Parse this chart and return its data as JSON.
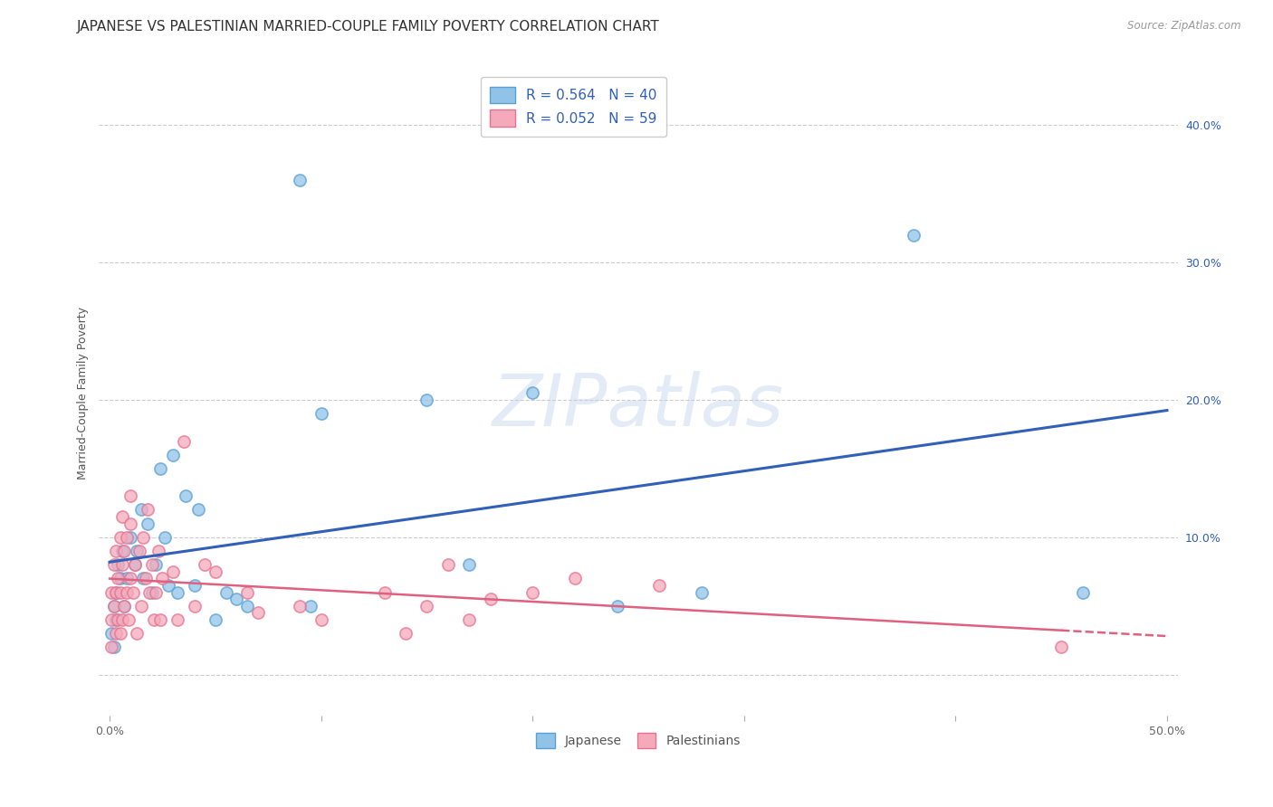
{
  "title": "JAPANESE VS PALESTINIAN MARRIED-COUPLE FAMILY POVERTY CORRELATION CHART",
  "source": "Source: ZipAtlas.com",
  "ylabel": "Married-Couple Family Poverty",
  "watermark": "ZIPatlas",
  "xlim": [
    0.0,
    0.5
  ],
  "ylim": [
    0.0,
    0.44
  ],
  "japanese_color": "#91C3E8",
  "japanese_edge_color": "#5A9FD4",
  "palestinian_color": "#F4AABB",
  "palestinian_edge_color": "#E87090",
  "japanese_line_color": "#3060B8",
  "palestinian_line_color": "#E06080",
  "japanese_R": 0.564,
  "japanese_N": 40,
  "palestinian_R": 0.052,
  "palestinian_N": 59,
  "japanese_x": [
    0.001,
    0.002,
    0.002,
    0.003,
    0.003,
    0.004,
    0.005,
    0.006,
    0.007,
    0.008,
    0.01,
    0.012,
    0.013,
    0.015,
    0.016,
    0.018,
    0.02,
    0.022,
    0.024,
    0.026,
    0.028,
    0.03,
    0.032,
    0.036,
    0.04,
    0.042,
    0.05,
    0.055,
    0.06,
    0.065,
    0.09,
    0.095,
    0.1,
    0.15,
    0.17,
    0.2,
    0.24,
    0.28,
    0.38,
    0.46
  ],
  "japanese_y": [
    0.03,
    0.05,
    0.02,
    0.04,
    0.06,
    0.08,
    0.07,
    0.09,
    0.05,
    0.07,
    0.1,
    0.08,
    0.09,
    0.12,
    0.07,
    0.11,
    0.06,
    0.08,
    0.15,
    0.1,
    0.065,
    0.16,
    0.06,
    0.13,
    0.065,
    0.12,
    0.04,
    0.06,
    0.055,
    0.05,
    0.36,
    0.05,
    0.19,
    0.2,
    0.08,
    0.205,
    0.05,
    0.06,
    0.32,
    0.06
  ],
  "palestinian_x": [
    0.001,
    0.001,
    0.001,
    0.002,
    0.002,
    0.003,
    0.003,
    0.003,
    0.004,
    0.004,
    0.005,
    0.005,
    0.005,
    0.006,
    0.006,
    0.006,
    0.007,
    0.007,
    0.008,
    0.008,
    0.009,
    0.01,
    0.01,
    0.01,
    0.011,
    0.012,
    0.013,
    0.014,
    0.015,
    0.016,
    0.017,
    0.018,
    0.019,
    0.02,
    0.021,
    0.022,
    0.023,
    0.024,
    0.025,
    0.03,
    0.032,
    0.035,
    0.04,
    0.045,
    0.05,
    0.065,
    0.07,
    0.09,
    0.1,
    0.13,
    0.14,
    0.15,
    0.16,
    0.17,
    0.18,
    0.2,
    0.22,
    0.26,
    0.45
  ],
  "palestinian_y": [
    0.02,
    0.04,
    0.06,
    0.05,
    0.08,
    0.03,
    0.06,
    0.09,
    0.04,
    0.07,
    0.03,
    0.06,
    0.1,
    0.04,
    0.08,
    0.115,
    0.05,
    0.09,
    0.06,
    0.1,
    0.04,
    0.07,
    0.11,
    0.13,
    0.06,
    0.08,
    0.03,
    0.09,
    0.05,
    0.1,
    0.07,
    0.12,
    0.06,
    0.08,
    0.04,
    0.06,
    0.09,
    0.04,
    0.07,
    0.075,
    0.04,
    0.17,
    0.05,
    0.08,
    0.075,
    0.06,
    0.045,
    0.05,
    0.04,
    0.06,
    0.03,
    0.05,
    0.08,
    0.04,
    0.055,
    0.06,
    0.07,
    0.065,
    0.02
  ],
  "background_color": "#FFFFFF",
  "grid_color": "#CCCCCC",
  "title_fontsize": 11,
  "axis_label_fontsize": 9,
  "tick_fontsize": 9,
  "marker_size": 90,
  "line_width": 2.2
}
